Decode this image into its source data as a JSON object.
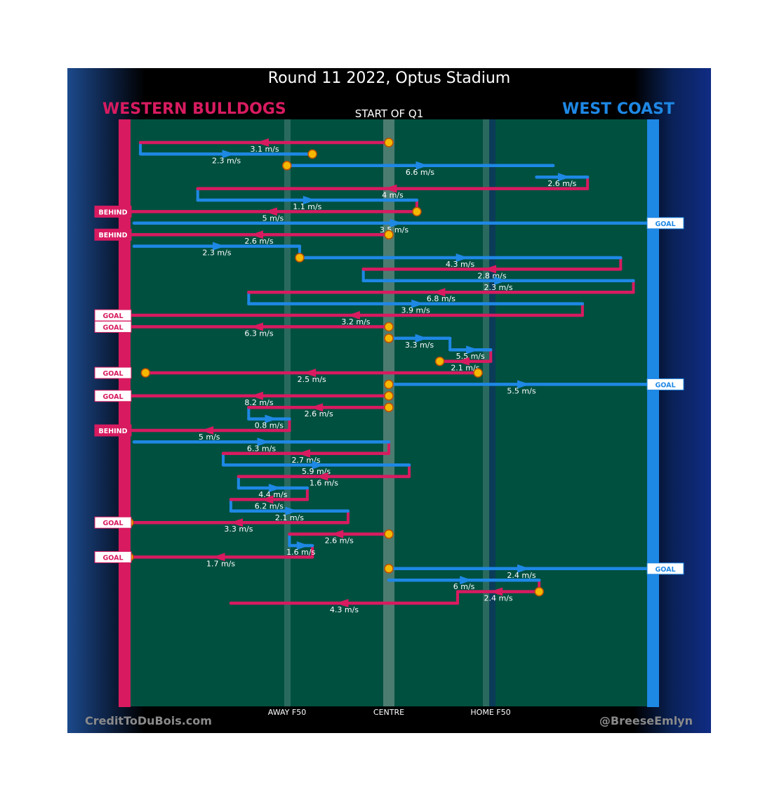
{
  "title": "Round 11 2022, Optus Stadium",
  "home_team": "WESTERN BULLDOGS",
  "away_team": "WEST COAST",
  "period_label": "START OF Q1",
  "credit_left": "CreditToDuBois.com",
  "credit_right": "@BreeseEmlyn",
  "colors": {
    "home": "#d81b60",
    "away": "#1e88e5",
    "field": "#005040",
    "centre_band": "#4c7c70",
    "f50_line": "#2a6a5e",
    "marker": "#f5b800",
    "text": "#ffffff"
  },
  "chart_data": {
    "type": "flow",
    "x_axis": {
      "ticks": [
        {
          "label": "AWAY F50",
          "x": -0.4
        },
        {
          "label": "CENTRE",
          "x": 0
        },
        {
          "label": "HOME F50",
          "x": 0.4
        }
      ],
      "range": [
        -1,
        1
      ]
    },
    "segments": [
      {
        "team": "home",
        "from": 0,
        "to": -0.975,
        "speed": "3.1 m/s",
        "start_marker": true
      },
      {
        "team": "away",
        "from": -0.975,
        "to": -0.3,
        "speed": "2.3 m/s",
        "end_marker": true
      },
      {
        "team": "away",
        "from": -0.4,
        "to": 0.645,
        "speed": "6.6 m/s",
        "start_marker": true
      },
      {
        "team": "away",
        "from": 0.58,
        "to": 0.78,
        "speed": "2.6 m/s"
      },
      {
        "team": "home",
        "from": 0.78,
        "to": -0.75,
        "speed": "4 m/s"
      },
      {
        "team": "away",
        "from": -0.75,
        "to": 0.11,
        "speed": "1.1 m/s"
      },
      {
        "team": "home",
        "from": 0.11,
        "to": -1.05,
        "speed": "5 m/s",
        "start_marker": true,
        "result": "BEHIND"
      },
      {
        "team": "away",
        "from": -1,
        "to": 1.05,
        "speed": "3.5 m/s",
        "result": "GOAL"
      },
      {
        "team": "home",
        "from": 0,
        "to": -1.05,
        "speed": "2.6 m/s",
        "start_marker": true,
        "result": "BEHIND"
      },
      {
        "team": "away",
        "from": -1,
        "to": -0.35,
        "speed": "2.3 m/s"
      },
      {
        "team": "away",
        "from": -0.35,
        "to": 0.91,
        "speed": "4.3 m/s",
        "start_marker": true
      },
      {
        "team": "home",
        "from": 0.91,
        "to": -0.1,
        "speed": "2.8 m/s"
      },
      {
        "team": "away",
        "from": -0.1,
        "to": 0.96,
        "speed": "2.3 m/s"
      },
      {
        "team": "home",
        "from": 0.96,
        "to": -0.55,
        "speed": "6.8 m/s"
      },
      {
        "team": "away",
        "from": -0.55,
        "to": 0.76,
        "speed": "3.9 m/s"
      },
      {
        "team": "home",
        "from": 0.76,
        "to": -1.05,
        "speed": "3.2 m/s",
        "result": "GOAL"
      },
      {
        "team": "home",
        "from": 0,
        "to": -1.05,
        "speed": "6.3 m/s",
        "start_marker": true,
        "result": "GOAL"
      },
      {
        "team": "away",
        "from": 0,
        "to": 0.24,
        "speed": "3.3 m/s",
        "start_marker": true
      },
      {
        "team": "away",
        "from": 0.24,
        "to": 0.4,
        "speed": "5.5 m/s"
      },
      {
        "team": "home",
        "from": 0.4,
        "to": 0.2,
        "speed": "2.1 m/s",
        "end_marker": true
      },
      {
        "team": "home",
        "from": 0.35,
        "to": -0.955,
        "speed": "2.5 m/s",
        "start_marker": true,
        "end_marker": true,
        "result": "GOAL"
      },
      {
        "team": "away",
        "from": 0,
        "to": 1.05,
        "speed": "5.5 m/s",
        "start_marker": true,
        "result": "GOAL"
      },
      {
        "team": "home",
        "from": 0,
        "to": -1.05,
        "speed": "8.2 m/s",
        "start_marker": true,
        "result": "GOAL"
      },
      {
        "team": "home",
        "from": 0,
        "to": -0.55,
        "speed": "2.6 m/s",
        "start_marker": true
      },
      {
        "team": "away",
        "from": -0.55,
        "to": -0.39,
        "speed": "0.8 m/s"
      },
      {
        "team": "home",
        "from": -0.39,
        "to": -1.05,
        "speed": "5 m/s",
        "result": "BEHIND"
      },
      {
        "team": "away",
        "from": -1,
        "to": 0,
        "speed": "6.3 m/s"
      },
      {
        "team": "home",
        "from": 0,
        "to": -0.65,
        "speed": "2.7 m/s"
      },
      {
        "team": "away",
        "from": -0.65,
        "to": 0.08,
        "speed": "5.9 m/s"
      },
      {
        "team": "home",
        "from": 0.08,
        "to": -0.59,
        "speed": "1.6 m/s"
      },
      {
        "team": "away",
        "from": -0.59,
        "to": -0.32,
        "speed": "4.4 m/s"
      },
      {
        "team": "home",
        "from": -0.32,
        "to": -0.62,
        "speed": "6.2 m/s"
      },
      {
        "team": "away",
        "from": -0.62,
        "to": -0.16,
        "speed": "2.1 m/s"
      },
      {
        "team": "home",
        "from": -0.16,
        "to": -1.05,
        "speed": "3.3 m/s",
        "end_marker": true,
        "result": "GOAL"
      },
      {
        "team": "home",
        "from": 0,
        "to": -0.39,
        "speed": "2.6 m/s",
        "start_marker": true
      },
      {
        "team": "away",
        "from": -0.39,
        "to": -0.3,
        "speed": "1.6 m/s"
      },
      {
        "team": "home",
        "from": -0.3,
        "to": -1.05,
        "speed": "1.7 m/s",
        "end_marker": true,
        "result": "GOAL"
      },
      {
        "team": "away",
        "from": 0,
        "to": 1.05,
        "speed": "2.4 m/s",
        "start_marker": true,
        "result": "GOAL"
      },
      {
        "team": "away",
        "from": 0,
        "to": 0.59,
        "speed": "6 m/s"
      },
      {
        "team": "home",
        "from": 0.59,
        "to": 0.27,
        "speed": "2.4 m/s",
        "start_marker": true
      },
      {
        "team": "home",
        "from": 0.27,
        "to": -0.62,
        "speed": "4.3 m/s"
      }
    ]
  }
}
